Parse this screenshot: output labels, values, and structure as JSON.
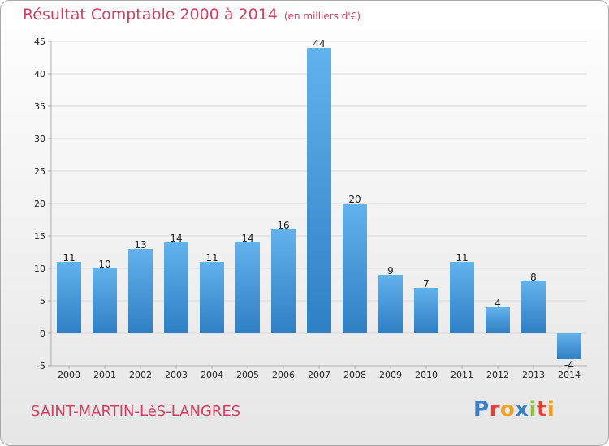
{
  "title": "Résultat Comptable 2000 à 2014",
  "unit": "(en milliers d'€)",
  "commune": "SAINT-MARTIN-LèS-LANGRES",
  "brand": {
    "letters": [
      {
        "ch": "P",
        "color": "#3a7ec6"
      },
      {
        "ch": "r",
        "color": "#e2403a"
      },
      {
        "ch": "o",
        "color": "#f0a020"
      },
      {
        "ch": "x",
        "color": "#3a7ec6"
      },
      {
        "ch": "i",
        "color": "#8cc43c"
      },
      {
        "ch": "t",
        "color": "#e2403a"
      },
      {
        "ch": "i",
        "color": "#f0a020"
      }
    ]
  },
  "colors": {
    "bar_top": "#62b2ec",
    "bar_bottom": "#2f7fc4",
    "grid": "#d8d8d8",
    "axis": "#b0b0b0",
    "title": "#d04060"
  },
  "chart_data": {
    "type": "bar",
    "title": "Résultat Comptable 2000 à 2014",
    "unit": "(en milliers d'€)",
    "categories": [
      "2000",
      "2001",
      "2002",
      "2003",
      "2004",
      "2005",
      "2006",
      "2007",
      "2008",
      "2009",
      "2010",
      "2011",
      "2012",
      "2013",
      "2014"
    ],
    "values": [
      11,
      10,
      13,
      14,
      11,
      14,
      16,
      44,
      20,
      9,
      7,
      11,
      4,
      8,
      -4
    ],
    "ylim": [
      -5,
      45
    ],
    "yticks": [
      -5,
      0,
      5,
      10,
      15,
      20,
      25,
      30,
      35,
      40,
      45
    ],
    "grid": true
  }
}
